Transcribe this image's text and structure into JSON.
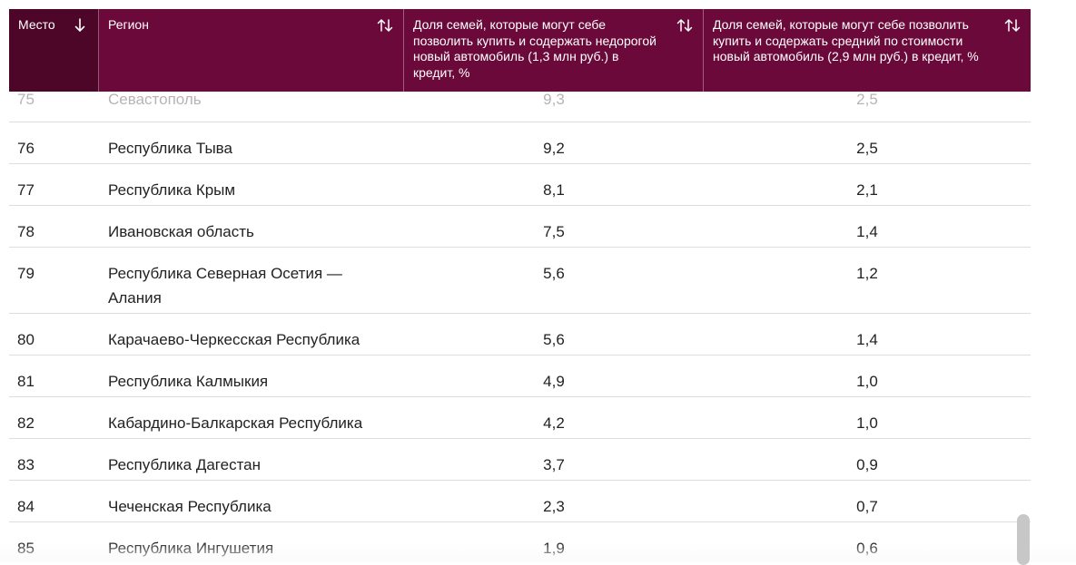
{
  "table": {
    "headers": {
      "place": "Место",
      "region": "Регион",
      "cheap_car_share": "Доля семей, которые могут себе позволить купить и содержать недорогой новый автомобиль (1,3 млн руб.) в кредит, %",
      "avg_car_share": "Доля семей, которые могут себе позволить купить и содержать средний по стоимости новый автомобиль (2,9 млн руб.) в кредит, %"
    },
    "sort": {
      "column": "place",
      "direction": "descending"
    },
    "colors": {
      "header_bg": "#6b0a3a",
      "sorted_header_bg": "#4d0628",
      "row_divider": "#dedede"
    },
    "icons": {
      "sort_desc": "arrow-down-icon",
      "sortable": "sort-updown-icon"
    },
    "rows": [
      {
        "place": "75",
        "region": "Севастополь",
        "cheap": "9,3",
        "avg": "2,5"
      },
      {
        "place": "76",
        "region": "Республика Тыва",
        "cheap": "9,2",
        "avg": "2,5"
      },
      {
        "place": "77",
        "region": "Республика Крым",
        "cheap": "8,1",
        "avg": "2,1"
      },
      {
        "place": "78",
        "region": "Ивановская область",
        "cheap": "7,5",
        "avg": "1,4"
      },
      {
        "place": "79",
        "region": "Республика Северная Осетия — Алания",
        "cheap": "5,6",
        "avg": "1,2"
      },
      {
        "place": "80",
        "region": "Карачаево-Черкесская Республика",
        "cheap": "5,6",
        "avg": "1,4"
      },
      {
        "place": "81",
        "region": "Республика Калмыкия",
        "cheap": "4,9",
        "avg": "1,0"
      },
      {
        "place": "82",
        "region": "Кабардино-Балкарская Республика",
        "cheap": "4,2",
        "avg": "1,0"
      },
      {
        "place": "83",
        "region": "Республика Дагестан",
        "cheap": "3,7",
        "avg": "0,9"
      },
      {
        "place": "84",
        "region": "Чеченская Республика",
        "cheap": "2,3",
        "avg": "0,7"
      },
      {
        "place": "85",
        "region": "Республика Ингушетия",
        "cheap": "1,9",
        "avg": "0,6"
      }
    ]
  }
}
